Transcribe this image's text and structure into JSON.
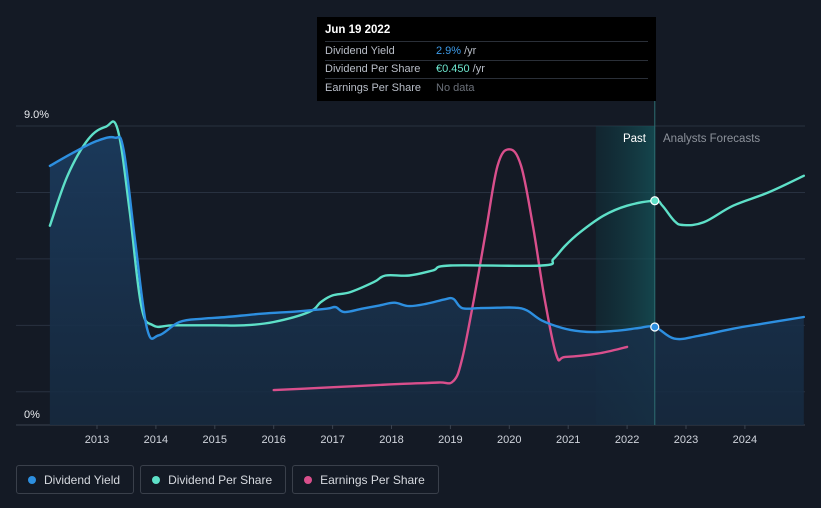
{
  "tooltip": {
    "date": "Jun 19 2022",
    "rows": [
      {
        "label": "Dividend Yield",
        "value": "2.9%",
        "unit": "/yr",
        "color": "#3d9be9"
      },
      {
        "label": "Dividend Per Share",
        "value": "€0.450",
        "unit": "/yr",
        "color": "#6ee8d0"
      },
      {
        "label": "Earnings Per Share",
        "value": "No data",
        "unit": "",
        "color": "#6b7079"
      }
    ]
  },
  "legend": [
    {
      "label": "Dividend Yield",
      "color": "#2d8fe0"
    },
    {
      "label": "Dividend Per Share",
      "color": "#5ee0c8"
    },
    {
      "label": "Earnings Per Share",
      "color": "#d94f8c"
    }
  ],
  "chart_data": {
    "type": "line",
    "title": "",
    "y_axis": {
      "top_label": "9.0%",
      "bottom_label": "0%",
      "min": 0,
      "max": 9
    },
    "x_ticks": [
      "2013",
      "2014",
      "2015",
      "2016",
      "2017",
      "2018",
      "2019",
      "2020",
      "2021",
      "2022",
      "2023",
      "2024"
    ],
    "x_range": [
      2012.2,
      2025.0
    ],
    "region_labels": {
      "past": "Past",
      "forecast": "Analysts Forecasts"
    },
    "forecast_start": 2022.47,
    "highlight_band": [
      2021.47,
      2022.47
    ],
    "series": [
      {
        "name": "Dividend Yield",
        "color": "#2d8fe0",
        "points": [
          [
            2012.2,
            7.8
          ],
          [
            2012.6,
            8.2
          ],
          [
            2013.0,
            8.55
          ],
          [
            2013.3,
            8.65
          ],
          [
            2013.45,
            8.3
          ],
          [
            2013.65,
            5.5
          ],
          [
            2013.85,
            2.9
          ],
          [
            2014.05,
            2.7
          ],
          [
            2014.4,
            3.1
          ],
          [
            2014.8,
            3.2
          ],
          [
            2015.2,
            3.25
          ],
          [
            2015.8,
            3.35
          ],
          [
            2016.4,
            3.42
          ],
          [
            2016.9,
            3.5
          ],
          [
            2017.05,
            3.55
          ],
          [
            2017.2,
            3.4
          ],
          [
            2017.5,
            3.5
          ],
          [
            2017.8,
            3.6
          ],
          [
            2018.05,
            3.68
          ],
          [
            2018.3,
            3.58
          ],
          [
            2018.6,
            3.65
          ],
          [
            2018.9,
            3.78
          ],
          [
            2019.05,
            3.8
          ],
          [
            2019.2,
            3.52
          ],
          [
            2019.5,
            3.52
          ],
          [
            2019.8,
            3.53
          ],
          [
            2020.1,
            3.53
          ],
          [
            2020.3,
            3.45
          ],
          [
            2020.55,
            3.15
          ],
          [
            2020.9,
            2.92
          ],
          [
            2021.2,
            2.82
          ],
          [
            2021.5,
            2.8
          ],
          [
            2021.9,
            2.85
          ],
          [
            2022.2,
            2.92
          ],
          [
            2022.47,
            2.95
          ],
          [
            2022.8,
            2.6
          ],
          [
            2023.2,
            2.68
          ],
          [
            2023.8,
            2.9
          ],
          [
            2024.3,
            3.05
          ],
          [
            2025.0,
            3.25
          ]
        ]
      },
      {
        "name": "Dividend Per Share",
        "color": "#5ee0c8",
        "points": [
          [
            2012.2,
            6.0
          ],
          [
            2012.5,
            7.5
          ],
          [
            2012.85,
            8.6
          ],
          [
            2013.15,
            8.98
          ],
          [
            2013.35,
            8.9
          ],
          [
            2013.55,
            6.5
          ],
          [
            2013.75,
            3.6
          ],
          [
            2013.95,
            3.0
          ],
          [
            2014.3,
            3.0
          ],
          [
            2015.0,
            3.0
          ],
          [
            2015.5,
            3.0
          ],
          [
            2016.0,
            3.1
          ],
          [
            2016.6,
            3.4
          ],
          [
            2016.8,
            3.7
          ],
          [
            2017.0,
            3.9
          ],
          [
            2017.3,
            4.0
          ],
          [
            2017.7,
            4.3
          ],
          [
            2017.9,
            4.5
          ],
          [
            2018.3,
            4.5
          ],
          [
            2018.7,
            4.65
          ],
          [
            2019.0,
            4.8
          ],
          [
            2020.55,
            4.8
          ],
          [
            2020.75,
            5.0
          ],
          [
            2020.95,
            5.4
          ],
          [
            2021.2,
            5.8
          ],
          [
            2021.6,
            6.3
          ],
          [
            2022.0,
            6.6
          ],
          [
            2022.47,
            6.75
          ],
          [
            2022.6,
            6.6
          ],
          [
            2022.8,
            6.15
          ],
          [
            2022.95,
            6.02
          ],
          [
            2023.3,
            6.1
          ],
          [
            2023.8,
            6.6
          ],
          [
            2024.4,
            7.0
          ],
          [
            2025.0,
            7.5
          ]
        ]
      },
      {
        "name": "Earnings Per Share",
        "color": "#d94f8c",
        "points": [
          [
            2016.0,
            1.05
          ],
          [
            2016.8,
            1.12
          ],
          [
            2017.5,
            1.18
          ],
          [
            2018.2,
            1.24
          ],
          [
            2018.8,
            1.28
          ],
          [
            2019.05,
            1.32
          ],
          [
            2019.2,
            2.0
          ],
          [
            2019.4,
            3.8
          ],
          [
            2019.6,
            5.8
          ],
          [
            2019.8,
            7.8
          ],
          [
            2020.0,
            8.3
          ],
          [
            2020.2,
            7.8
          ],
          [
            2020.4,
            6.0
          ],
          [
            2020.6,
            3.8
          ],
          [
            2020.8,
            2.1
          ],
          [
            2020.95,
            2.05
          ],
          [
            2021.5,
            2.15
          ],
          [
            2022.0,
            2.35
          ]
        ]
      }
    ]
  }
}
